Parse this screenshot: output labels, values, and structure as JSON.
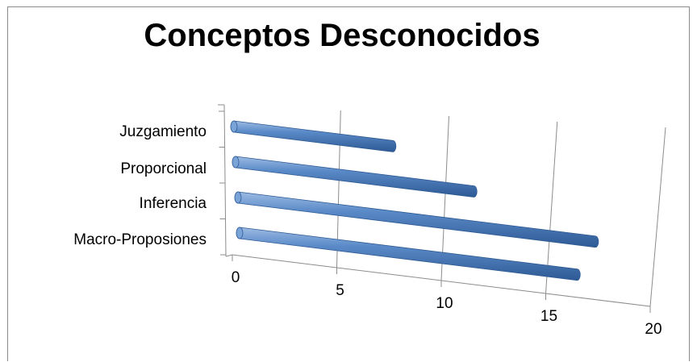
{
  "chart_data": {
    "type": "bar",
    "orientation": "horizontal",
    "style": "3d-cylinder",
    "title": "Conceptos Desconocidos",
    "categories": [
      "Juzgamiento",
      "Proporcional",
      "Inferencia",
      "Macro-Proposiones"
    ],
    "values": [
      8,
      12,
      18,
      17
    ],
    "xlim": [
      0,
      20
    ],
    "xticks": [
      0,
      5,
      10,
      15,
      20
    ],
    "grid": true,
    "legend": "none",
    "bar_color": "#4f81bd"
  }
}
